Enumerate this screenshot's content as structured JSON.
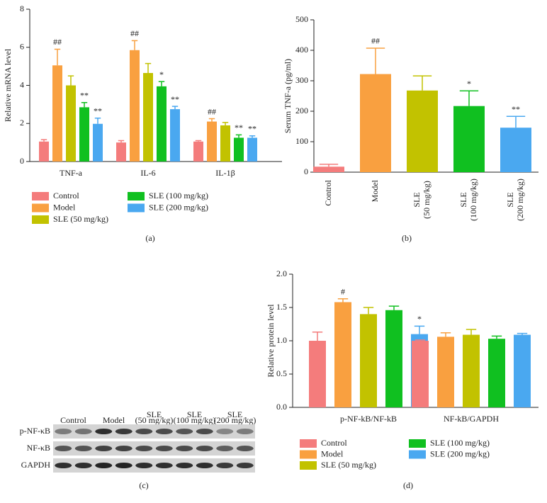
{
  "chart_data": [
    {
      "type": "grouped_bar",
      "label": "(a)",
      "ylabel": "Relative mRNA level",
      "categories": [
        "TNF-a",
        "IL-6",
        "IL-1β"
      ],
      "ylim": [
        0,
        8
      ],
      "yticks": [
        0,
        2,
        4,
        6,
        8
      ],
      "series": [
        {
          "name": "Control",
          "color": "#f47c7c",
          "values": [
            1.05,
            1.0,
            1.05
          ],
          "errors": [
            0.1,
            0.1,
            0.05
          ],
          "annotations": [
            null,
            null,
            null
          ]
        },
        {
          "name": "Model",
          "color": "#f9a040",
          "values": [
            5.05,
            5.85,
            2.1
          ],
          "errors": [
            0.85,
            0.5,
            0.15
          ],
          "annotations": [
            "##",
            "##",
            "##"
          ]
        },
        {
          "name": "SLE (50 mg/kg)",
          "color": "#c2c200",
          "values": [
            4.0,
            4.65,
            1.9
          ],
          "errors": [
            0.5,
            0.5,
            0.15
          ],
          "annotations": [
            null,
            null,
            null
          ]
        },
        {
          "name": "SLE (100 mg/kg)",
          "color": "#10c020",
          "values": [
            2.85,
            3.95,
            1.25
          ],
          "errors": [
            0.25,
            0.25,
            0.15
          ],
          "annotations": [
            "**",
            "*",
            "**"
          ]
        },
        {
          "name": "SLE (200 mg/kg)",
          "color": "#4aa8f0",
          "values": [
            1.98,
            2.75,
            1.25
          ],
          "errors": [
            0.3,
            0.15,
            0.1
          ],
          "annotations": [
            "**",
            "**",
            "**"
          ]
        }
      ]
    },
    {
      "type": "bar",
      "label": "(b)",
      "ylabel": "Serum TNF-a (pg/ml)",
      "categories": [
        "Control",
        "Model",
        "SLE (50 mg/kg)",
        "SLE (100 mg/kg)",
        "SLE (200 mg/kg)"
      ],
      "ylim": [
        0,
        500
      ],
      "yticks": [
        0,
        100,
        200,
        300,
        400,
        500
      ],
      "values": [
        18,
        322,
        268,
        217,
        146
      ],
      "errors": [
        8,
        85,
        48,
        50,
        37
      ],
      "annotations": [
        null,
        "##",
        null,
        "*",
        "**"
      ],
      "colors": [
        "#f47c7c",
        "#f9a040",
        "#c2c200",
        "#10c020",
        "#4aa8f0"
      ]
    },
    {
      "type": "grouped_bar",
      "label": "(d)",
      "ylabel": "Relative protein level",
      "categories": [
        "p-NF-kB/NF-kB",
        "NF-kB/GAPDH"
      ],
      "ylim": [
        0,
        2
      ],
      "yticks": [
        {
          "value": 0,
          "label": "0.0"
        },
        {
          "value": 0.5,
          "label": "0.5"
        },
        {
          "value": 1,
          "label": "1.0"
        },
        {
          "value": 1.5,
          "label": "1.5"
        },
        {
          "value": 2,
          "label": "2.0"
        }
      ],
      "series": [
        {
          "name": "Control",
          "color": "#f47c7c",
          "values": [
            1.0,
            1.0
          ],
          "errors": [
            0.13,
            0.01
          ],
          "annotations": [
            null,
            null
          ]
        },
        {
          "name": "Model",
          "color": "#f9a040",
          "values": [
            1.58,
            1.06
          ],
          "errors": [
            0.05,
            0.06
          ],
          "annotations": [
            "#",
            null
          ]
        },
        {
          "name": "SLE (50 mg/kg)",
          "color": "#c2c200",
          "values": [
            1.4,
            1.09
          ],
          "errors": [
            0.1,
            0.08
          ],
          "annotations": [
            null,
            null
          ]
        },
        {
          "name": "SLE (100 mg/kg)",
          "color": "#10c020",
          "values": [
            1.46,
            1.03
          ],
          "errors": [
            0.06,
            0.04
          ],
          "annotations": [
            null,
            null
          ]
        },
        {
          "name": "SLE (200 mg/kg)",
          "color": "#4aa8f0",
          "values": [
            1.1,
            1.09
          ],
          "errors": [
            0.12,
            0.02
          ],
          "annotations": [
            "*",
            null
          ]
        }
      ]
    }
  ],
  "blot": {
    "label": "(c)",
    "columns": [
      [
        "Control"
      ],
      [
        "Model"
      ],
      [
        "SLE",
        "(50 mg/kg)"
      ],
      [
        "SLE",
        "(100 mg/kg)"
      ],
      [
        "SLE",
        "(200 mg/kg)"
      ]
    ],
    "rows": [
      "p-NF-κB",
      "NF-κB",
      "GAPDH"
    ]
  }
}
